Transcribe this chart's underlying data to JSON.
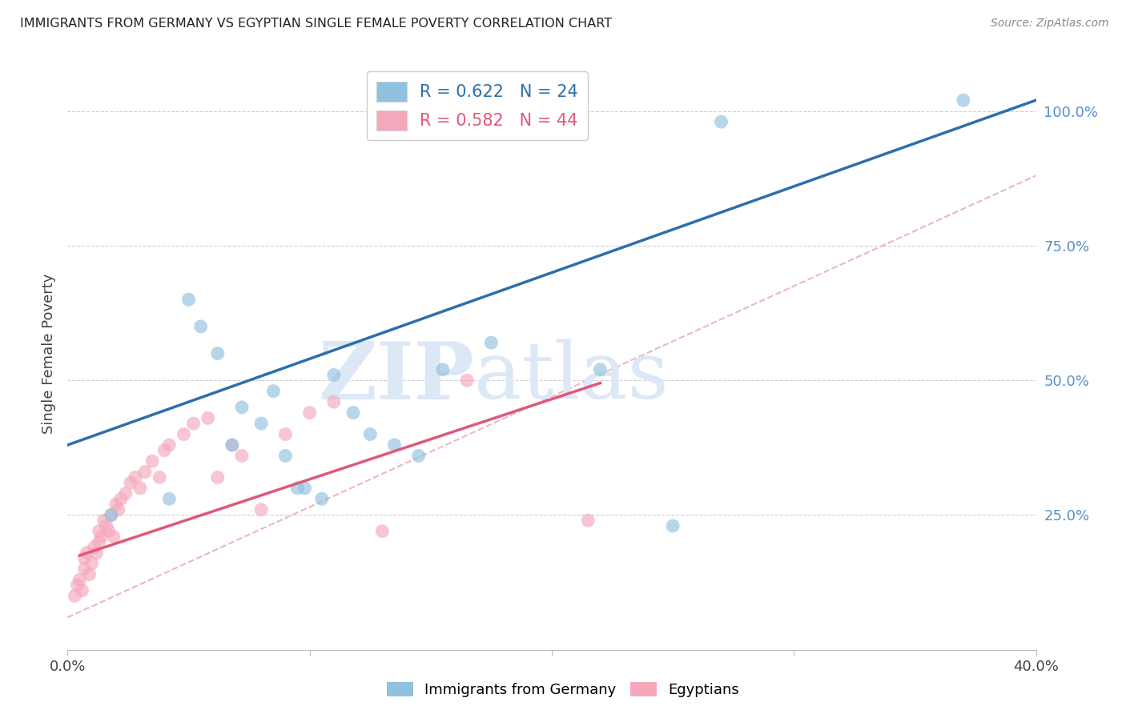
{
  "title": "IMMIGRANTS FROM GERMANY VS EGYPTIAN SINGLE FEMALE POVERTY CORRELATION CHART",
  "source": "Source: ZipAtlas.com",
  "ylabel": "Single Female Poverty",
  "xlim": [
    0.0,
    0.4
  ],
  "ylim": [
    0.0,
    1.1
  ],
  "blue_R": 0.622,
  "blue_N": 24,
  "pink_R": 0.582,
  "pink_N": 44,
  "blue_color": "#92c1e0",
  "pink_color": "#f5a8bc",
  "blue_line_color": "#2c6fad",
  "pink_line_color": "#e05878",
  "dashed_line_color": "#e8b0bc",
  "blue_line": [
    [
      0.0,
      0.38
    ],
    [
      0.4,
      1.02
    ]
  ],
  "pink_line": [
    [
      0.005,
      0.175
    ],
    [
      0.22,
      0.495
    ]
  ],
  "dashed_line": [
    [
      0.0,
      0.06
    ],
    [
      0.4,
      0.88
    ]
  ],
  "blue_scatter_x": [
    0.018,
    0.042,
    0.05,
    0.055,
    0.062,
    0.068,
    0.072,
    0.08,
    0.085,
    0.09,
    0.095,
    0.098,
    0.105,
    0.11,
    0.118,
    0.125,
    0.135,
    0.145,
    0.155,
    0.175,
    0.22,
    0.25,
    0.27,
    0.37
  ],
  "blue_scatter_y": [
    0.25,
    0.28,
    0.65,
    0.6,
    0.55,
    0.38,
    0.45,
    0.42,
    0.48,
    0.36,
    0.3,
    0.3,
    0.28,
    0.51,
    0.44,
    0.4,
    0.38,
    0.36,
    0.52,
    0.57,
    0.52,
    0.23,
    0.98,
    1.02
  ],
  "pink_scatter_x": [
    0.003,
    0.004,
    0.005,
    0.006,
    0.007,
    0.007,
    0.008,
    0.009,
    0.01,
    0.011,
    0.012,
    0.013,
    0.013,
    0.014,
    0.015,
    0.016,
    0.017,
    0.018,
    0.019,
    0.02,
    0.021,
    0.022,
    0.024,
    0.026,
    0.028,
    0.03,
    0.032,
    0.035,
    0.038,
    0.04,
    0.042,
    0.048,
    0.052,
    0.058,
    0.062,
    0.068,
    0.072,
    0.08,
    0.09,
    0.1,
    0.11,
    0.13,
    0.165,
    0.215
  ],
  "pink_scatter_y": [
    0.1,
    0.12,
    0.13,
    0.11,
    0.15,
    0.17,
    0.18,
    0.14,
    0.16,
    0.19,
    0.18,
    0.2,
    0.22,
    0.21,
    0.24,
    0.23,
    0.22,
    0.25,
    0.21,
    0.27,
    0.26,
    0.28,
    0.29,
    0.31,
    0.32,
    0.3,
    0.33,
    0.35,
    0.32,
    0.37,
    0.38,
    0.4,
    0.42,
    0.43,
    0.32,
    0.38,
    0.36,
    0.26,
    0.4,
    0.44,
    0.46,
    0.22,
    0.5,
    0.24
  ],
  "watermark_zip": "ZIP",
  "watermark_atlas": "atlas",
  "watermark_color": "#dce8f5",
  "legend_label_blue": "Immigrants from Germany",
  "legend_label_pink": "Egyptians"
}
